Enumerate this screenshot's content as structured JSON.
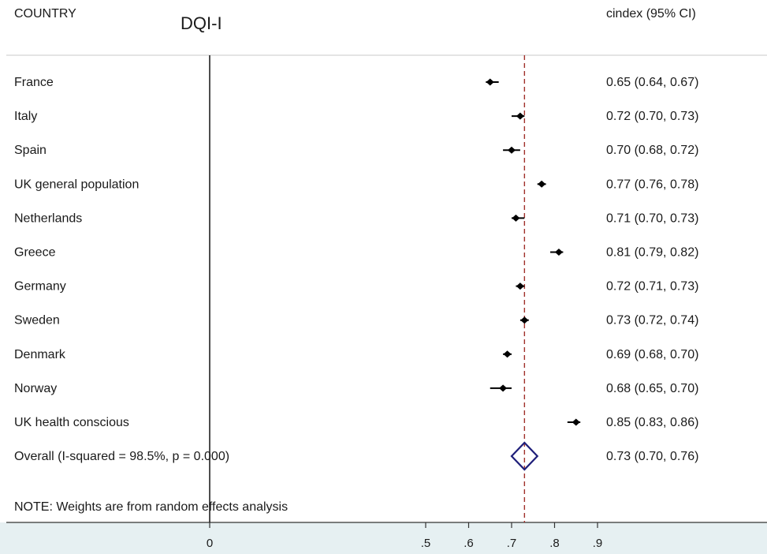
{
  "chart_data": {
    "type": "forest",
    "title": "DQI-I",
    "headers": {
      "label_col": "COUNTRY",
      "estimate_col": "cindex (95% CI)"
    },
    "studies": [
      {
        "label": "France",
        "estimate": 0.65,
        "lower": 0.64,
        "upper": 0.67,
        "text": "0.65 (0.64, 0.67)"
      },
      {
        "label": "Italy",
        "estimate": 0.72,
        "lower": 0.7,
        "upper": 0.73,
        "text": "0.72 (0.70, 0.73)"
      },
      {
        "label": "Spain",
        "estimate": 0.7,
        "lower": 0.68,
        "upper": 0.72,
        "text": "0.70 (0.68, 0.72)"
      },
      {
        "label": "UK general population",
        "estimate": 0.77,
        "lower": 0.76,
        "upper": 0.78,
        "text": "0.77 (0.76, 0.78)"
      },
      {
        "label": "Netherlands",
        "estimate": 0.71,
        "lower": 0.7,
        "upper": 0.73,
        "text": "0.71 (0.70, 0.73)"
      },
      {
        "label": "Greece",
        "estimate": 0.81,
        "lower": 0.79,
        "upper": 0.82,
        "text": "0.81 (0.79, 0.82)"
      },
      {
        "label": "Germany",
        "estimate": 0.72,
        "lower": 0.71,
        "upper": 0.73,
        "text": "0.72 (0.71, 0.73)"
      },
      {
        "label": "Sweden",
        "estimate": 0.73,
        "lower": 0.72,
        "upper": 0.74,
        "text": "0.73 (0.72, 0.74)"
      },
      {
        "label": "Denmark",
        "estimate": 0.69,
        "lower": 0.68,
        "upper": 0.7,
        "text": "0.69 (0.68, 0.70)"
      },
      {
        "label": "Norway",
        "estimate": 0.68,
        "lower": 0.65,
        "upper": 0.7,
        "text": "0.68 (0.65, 0.70)"
      },
      {
        "label": "UK health conscious",
        "estimate": 0.85,
        "lower": 0.83,
        "upper": 0.86,
        "text": "0.85 (0.83, 0.86)"
      }
    ],
    "overall": {
      "label": "Overall  (I-squared = 98.5%, p = 0.000)",
      "estimate": 0.73,
      "lower": 0.7,
      "upper": 0.76,
      "text": "0.73 (0.70, 0.76)"
    },
    "note": "NOTE: Weights are from random effects analysis",
    "x_ticks": [
      0,
      0.5,
      0.6,
      0.7,
      0.8,
      0.9
    ],
    "x_tick_labels": [
      "0",
      ".5",
      ".6",
      ".7",
      ".8",
      ".9"
    ],
    "null_line": 0,
    "overall_line": 0.73,
    "colors": {
      "marker": "#000000",
      "diamond": "#1f1f7a",
      "overall_line": "#a0302a",
      "axis_band": "#e6f0f2",
      "axis": "#333333"
    }
  }
}
